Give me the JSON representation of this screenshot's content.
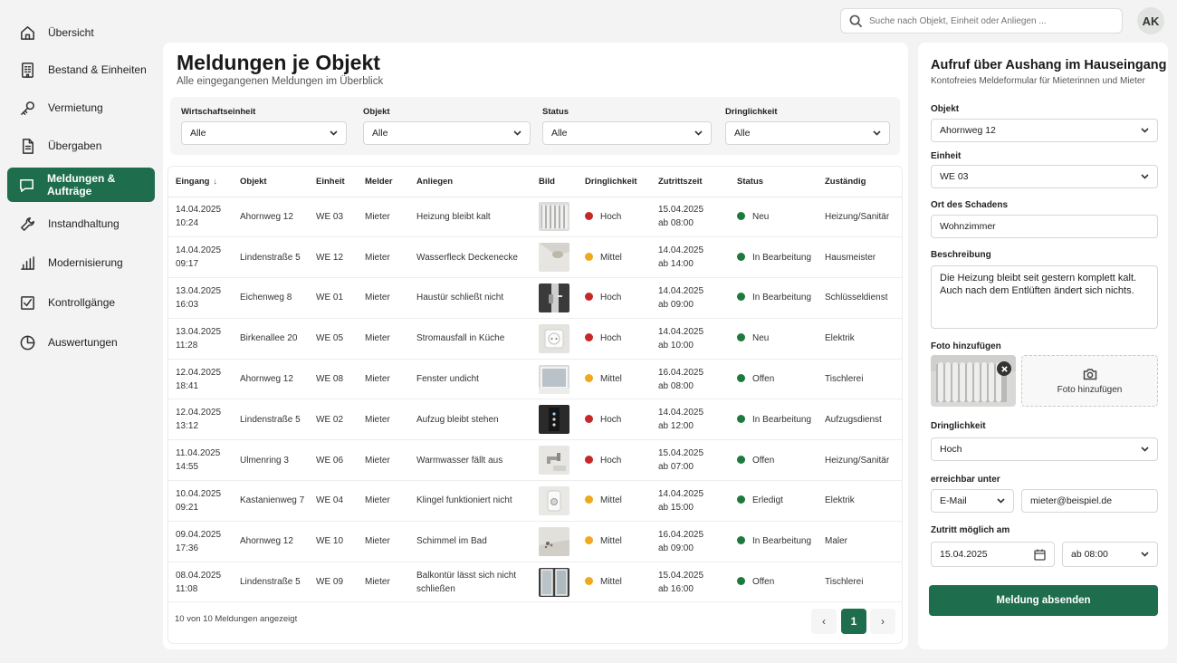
{
  "sidebar": {
    "items": [
      {
        "label": "Übersicht",
        "icon": "home-icon"
      },
      {
        "label": "Bestand & Einheiten",
        "icon": "building-icon"
      },
      {
        "label": "Vermietung",
        "icon": "key-icon"
      },
      {
        "label": "Übergaben",
        "icon": "document-icon"
      },
      {
        "label": "Meldungen & Aufträge",
        "icon": "chat-icon",
        "active": true
      },
      {
        "label": "Instandhaltung",
        "icon": "wrench-icon"
      },
      {
        "label": "Modernisierung",
        "icon": "bar-chart-icon"
      },
      {
        "label": "Kontrollgänge",
        "icon": "checkbox-icon"
      },
      {
        "label": "Auswertungen",
        "icon": "pie-chart-icon"
      }
    ]
  },
  "topbar": {
    "search_placeholder": "Suche nach Objekt, Einheit oder Anliegen ...",
    "avatar_initials": "AK"
  },
  "main": {
    "title": "Meldungen je Objekt",
    "subtitle": "Alle eingegangenen Meldungen im Überblick",
    "filters": [
      {
        "label": "Wirtschaftseinheit",
        "value": "Alle"
      },
      {
        "label": "Objekt",
        "value": "Alle"
      },
      {
        "label": "Status",
        "value": "Alle"
      },
      {
        "label": "Dringlichkeit",
        "value": "Alle"
      }
    ],
    "columns": [
      "Eingang",
      "Objekt",
      "Einheit",
      "Melder",
      "Anliegen",
      "Bild",
      "Dringlichkeit",
      "Zutrittszeit",
      "Status",
      "Zuständig"
    ],
    "rows": [
      {
        "date": "14.04.2025",
        "time": "10:24",
        "objekt": "Ahornweg 12",
        "einheit": "WE 03",
        "melder": "Mieter",
        "anliegen": "Heizung bleibt kalt",
        "bild": "radiator",
        "dringlichkeit": "Hoch",
        "zutritt_date": "15.04.2025",
        "zutritt_time": "ab 08:00",
        "status": "Neu",
        "zustaendig": "Heizung/Sanitär"
      },
      {
        "date": "14.04.2025",
        "time": "09:17",
        "objekt": "Lindenstraße 5",
        "einheit": "WE 12",
        "melder": "Mieter",
        "anliegen": "Wasserfleck Deckenecke",
        "bild": "ceiling",
        "dringlichkeit": "Mittel",
        "zutritt_date": "14.04.2025",
        "zutritt_time": "ab 14:00",
        "status": "In Bearbeitung",
        "zustaendig": "Hausmeister"
      },
      {
        "date": "13.04.2025",
        "time": "16:03",
        "objekt": "Eichenweg 8",
        "einheit": "WE 01",
        "melder": "Mieter",
        "anliegen": "Haustür schließt nicht",
        "bild": "door",
        "dringlichkeit": "Hoch",
        "zutritt_date": "14.04.2025",
        "zutritt_time": "ab 09:00",
        "status": "In Bearbeitung",
        "zustaendig": "Schlüsseldienst"
      },
      {
        "date": "13.04.2025",
        "time": "11:28",
        "objekt": "Birkenallee 20",
        "einheit": "WE 05",
        "melder": "Mieter",
        "anliegen": "Stromausfall in Küche",
        "bild": "socket",
        "dringlichkeit": "Hoch",
        "zutritt_date": "14.04.2025",
        "zutritt_time": "ab 10:00",
        "status": "Neu",
        "zustaendig": "Elektrik"
      },
      {
        "date": "12.04.2025",
        "time": "18:41",
        "objekt": "Ahornweg 12",
        "einheit": "WE 08",
        "melder": "Mieter",
        "anliegen": "Fenster undicht",
        "bild": "window",
        "dringlichkeit": "Mittel",
        "zutritt_date": "16.04.2025",
        "zutritt_time": "ab 08:00",
        "status": "Offen",
        "zustaendig": "Tischlerei"
      },
      {
        "date": "12.04.2025",
        "time": "13:12",
        "objekt": "Lindenstraße 5",
        "einheit": "WE 02",
        "melder": "Mieter",
        "anliegen": "Aufzug bleibt stehen",
        "bild": "elevator",
        "dringlichkeit": "Hoch",
        "zutritt_date": "14.04.2025",
        "zutritt_time": "ab 12:00",
        "status": "In Bearbeitung",
        "zustaendig": "Aufzugsdienst"
      },
      {
        "date": "11.04.2025",
        "time": "14:55",
        "objekt": "Ulmenring 3",
        "einheit": "WE 06",
        "melder": "Mieter",
        "anliegen": "Warmwasser fällt aus",
        "bild": "faucet",
        "dringlichkeit": "Hoch",
        "zutritt_date": "15.04.2025",
        "zutritt_time": "ab 07:00",
        "status": "Offen",
        "zustaendig": "Heizung/Sanitär"
      },
      {
        "date": "10.04.2025",
        "time": "09:21",
        "objekt": "Kastanienweg 7",
        "einheit": "WE 04",
        "melder": "Mieter",
        "anliegen": "Klingel funktioniert nicht",
        "bild": "doorbell",
        "dringlichkeit": "Mittel",
        "zutritt_date": "14.04.2025",
        "zutritt_time": "ab 15:00",
        "status": "Erledigt",
        "zustaendig": "Elektrik"
      },
      {
        "date": "09.04.2025",
        "time": "17:36",
        "objekt": "Ahornweg 12",
        "einheit": "WE 10",
        "melder": "Mieter",
        "anliegen": "Schimmel im Bad",
        "bild": "mold",
        "dringlichkeit": "Mittel",
        "zutritt_date": "16.04.2025",
        "zutritt_time": "ab 09:00",
        "status": "In Bearbeitung",
        "zustaendig": "Maler"
      },
      {
        "date": "08.04.2025",
        "time": "11:08",
        "objekt": "Lindenstraße 5",
        "einheit": "WE 09",
        "melder": "Mieter",
        "anliegen": "Balkontür lässt sich nicht schließen",
        "bild": "balcony-door",
        "dringlichkeit": "Mittel",
        "zutritt_date": "15.04.2025",
        "zutritt_time": "ab 16:00",
        "status": "Offen",
        "zustaendig": "Tischlerei"
      }
    ],
    "footer_text": "10 von 10 Meldungen angezeigt",
    "current_page": "1"
  },
  "colors": {
    "accent": "#1e6e4e",
    "hoch": "#c62828",
    "mittel": "#f0a81c",
    "status": "#1e7a3c"
  },
  "form": {
    "title": "Aufruf über Aushang im Hauseingang",
    "subtitle": "Kontofreies Meldeformular für Mieterinnen und Mieter",
    "objekt_label": "Objekt",
    "objekt_value": "Ahornweg 12",
    "einheit_label": "Einheit",
    "einheit_value": "WE 03",
    "ort_label": "Ort des Schadens",
    "ort_value": "Wohnzimmer",
    "beschreibung_label": "Beschreibung",
    "beschreibung_value": "Die Heizung bleibt seit gestern komplett kalt. Auch nach dem Entlüften ändert sich nichts.",
    "foto_label": "Foto hinzufügen",
    "foto_add": "Foto hinzufügen",
    "dringlichkeit_label": "Dringlichkeit",
    "dringlichkeit_value": "Hoch",
    "erreichbar_label": "erreichbar unter",
    "kontakt_type": "E-Mail",
    "kontakt_value": "mieter@beispiel.de",
    "zutritt_label": "Zutritt möglich am",
    "zutritt_date": "15.04.2025",
    "zutritt_time": "ab 08:00",
    "submit_label": "Meldung absenden"
  }
}
